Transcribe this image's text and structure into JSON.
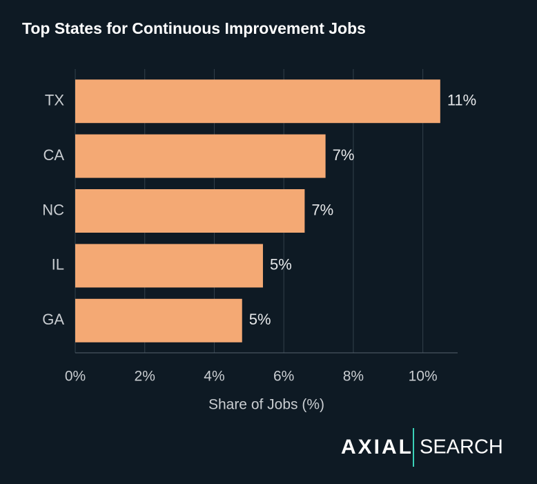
{
  "chart_data": {
    "type": "bar",
    "orientation": "horizontal",
    "title": "Top States for Continuous Improvement Jobs",
    "x_label": "Share of Jobs (%)",
    "categories": [
      "TX",
      "CA",
      "NC",
      "IL",
      "GA"
    ],
    "values": [
      10.5,
      7.2,
      6.6,
      5.4,
      4.8
    ],
    "value_labels": [
      "11%",
      "7%",
      "7%",
      "5%",
      "5%"
    ],
    "color": "#f4a974",
    "xlim": [
      0,
      11
    ],
    "xticks": [
      {
        "value": 0,
        "label": "0%"
      },
      {
        "value": 2,
        "label": "2%"
      },
      {
        "value": 4,
        "label": "4%"
      },
      {
        "value": 6,
        "label": "6%"
      },
      {
        "value": 8,
        "label": "8%"
      },
      {
        "value": 10,
        "label": "10%"
      }
    ],
    "grid": true
  },
  "logo": {
    "brand": "AXIAL",
    "product": "SEARCH"
  }
}
